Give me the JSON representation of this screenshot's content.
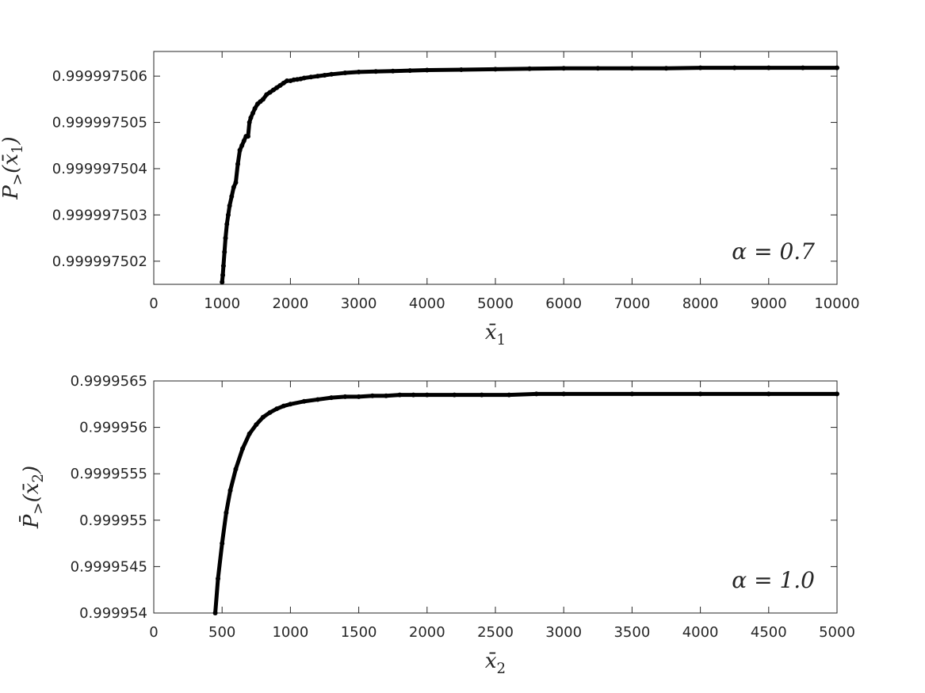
{
  "chart_data": [
    {
      "type": "scatter",
      "xlabel": "x̄1",
      "ylabel": "P̄>(x̄1)",
      "annotation": "α = 0.7",
      "annotation_placement": "bottom-right",
      "xlim": [
        0,
        10000
      ],
      "ylim": [
        0.9999975015,
        0.999997506533
      ],
      "xticks": [
        0,
        1000,
        2000,
        3000,
        4000,
        5000,
        6000,
        7000,
        8000,
        9000,
        10000
      ],
      "xtick_labels": [
        "0",
        "1000",
        "2000",
        "3000",
        "4000",
        "5000",
        "6000",
        "7000",
        "8000",
        "9000",
        "10000"
      ],
      "yticks": [
        0.999997502,
        0.999997503,
        0.999997504,
        0.999997505,
        0.999997506
      ],
      "ytick_labels": [
        "0.999997502",
        "0.999997503",
        "0.999997504",
        "0.999997505",
        "0.999997506"
      ],
      "grid": false,
      "marker": "filled-circle",
      "color": "#000000",
      "series": [
        {
          "x": [
            1000,
            1010,
            1020,
            1035,
            1050,
            1070,
            1090,
            1110,
            1140,
            1170,
            1200,
            1230,
            1260,
            1290,
            1320,
            1350,
            1380,
            1400,
            1420,
            1450,
            1480,
            1520,
            1560,
            1600,
            1650,
            1700,
            1750,
            1800,
            1850,
            1900,
            1950,
            2000,
            2050,
            2100,
            2150,
            2200,
            2300,
            2400,
            2500,
            2600,
            2800,
            3000,
            3250,
            3500,
            3750,
            4000,
            4500,
            5000,
            5500,
            6000,
            6500,
            7000,
            7500,
            8000,
            8500,
            9000,
            9500,
            10000
          ],
          "y": [
            0.99999750155,
            0.9999975017,
            0.9999975019,
            0.9999975022,
            0.9999975025,
            0.9999975028,
            0.999997503,
            0.9999975032,
            0.9999975034,
            0.9999975036,
            0.9999975037,
            0.9999975041,
            0.9999975044,
            0.9999975045,
            0.9999975046,
            0.9999975047,
            0.9999975047,
            0.999997505,
            0.9999975051,
            0.9999975052,
            0.9999975053,
            0.9999975054,
            0.99999750545,
            0.9999975055,
            0.9999975056,
            0.99999750565,
            0.9999975057,
            0.99999750575,
            0.9999975058,
            0.99999750585,
            0.9999975059,
            0.9999975059,
            0.99999750592,
            0.99999750593,
            0.99999750594,
            0.99999750596,
            0.99999750598,
            0.999997506,
            0.99999750602,
            0.99999750604,
            0.99999750607,
            0.99999750609,
            0.9999975061,
            0.99999750611,
            0.99999750612,
            0.99999750613,
            0.99999750614,
            0.99999750615,
            0.99999750616,
            0.99999750617,
            0.99999750617,
            0.99999750617,
            0.99999750617,
            0.99999750618,
            0.99999750618,
            0.99999750618,
            0.99999750618,
            0.99999750618
          ]
        }
      ]
    },
    {
      "type": "scatter",
      "xlabel": "x̄2",
      "ylabel": "P̄>(x̄2)",
      "annotation": "α = 1.0",
      "annotation_placement": "bottom-right",
      "xlim": [
        0,
        5000
      ],
      "ylim": [
        0.999954,
        0.9999565
      ],
      "xticks": [
        0,
        500,
        1000,
        1500,
        2000,
        2500,
        3000,
        3500,
        4000,
        4500,
        5000
      ],
      "xtick_labels": [
        "0",
        "500",
        "1000",
        "1500",
        "2000",
        "2500",
        "3000",
        "3500",
        "4000",
        "4500",
        "5000"
      ],
      "yticks": [
        0.999954,
        0.9999545,
        0.999955,
        0.9999555,
        0.999956,
        0.9999565
      ],
      "ytick_labels": [
        "0.999954",
        "0.9999545",
        "0.999955",
        "0.9999555",
        "0.999956",
        "0.9999565"
      ],
      "grid": false,
      "marker": "filled-circle",
      "color": "#000000",
      "series": [
        {
          "x": [
            450,
            470,
            500,
            530,
            560,
            600,
            650,
            700,
            750,
            800,
            850,
            900,
            950,
            1000,
            1100,
            1200,
            1300,
            1400,
            1500,
            1600,
            1700,
            1800,
            1900,
            2000,
            2200,
            2400,
            2600,
            2800,
            3000,
            3500,
            4000,
            4500,
            5000
          ],
          "y": [
            0.999954,
            0.99995437,
            0.99995475,
            0.99995508,
            0.99995532,
            0.99995555,
            0.99995577,
            0.99995593,
            0.99995603,
            0.99995611,
            0.99995616,
            0.9999562,
            0.99995623,
            0.99995625,
            0.99995628,
            0.9999563,
            0.99995632,
            0.99995633,
            0.99995633,
            0.99995634,
            0.99995634,
            0.99995635,
            0.99995635,
            0.99995635,
            0.99995635,
            0.99995635,
            0.99995635,
            0.99995636,
            0.99995636,
            0.99995636,
            0.99995636,
            0.99995636,
            0.99995636
          ]
        }
      ]
    }
  ]
}
